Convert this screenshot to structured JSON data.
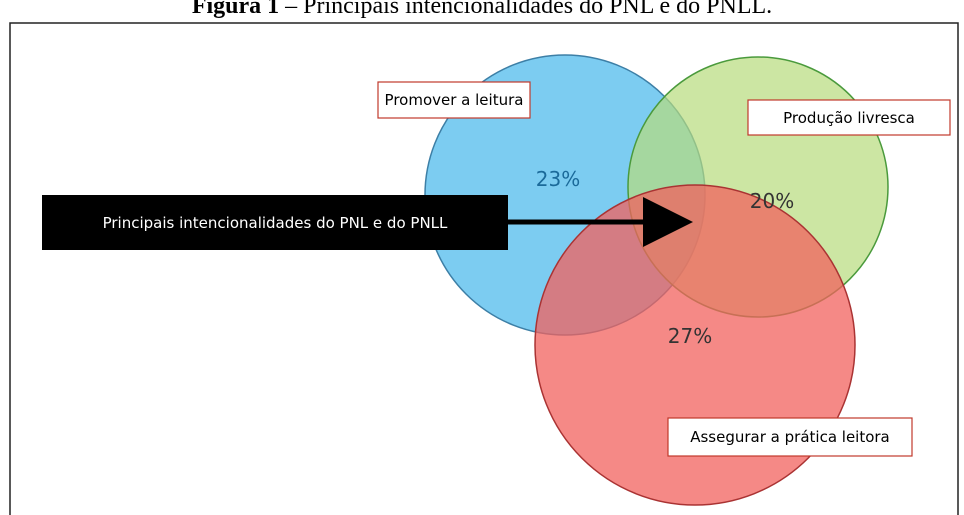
{
  "header": {
    "label": "Figura 1",
    "title": " – Principais intencionalidades do PNL e do PNLL."
  },
  "center_box": {
    "label": "Principais intencionalidades do PNL e do PNLL"
  },
  "circles": [
    {
      "label": "Promover a leitura",
      "percent": "23%"
    },
    {
      "label": "Produção livresca",
      "percent": "20%"
    },
    {
      "label": "Assegurar a prática leitora",
      "percent": "27%"
    }
  ]
}
